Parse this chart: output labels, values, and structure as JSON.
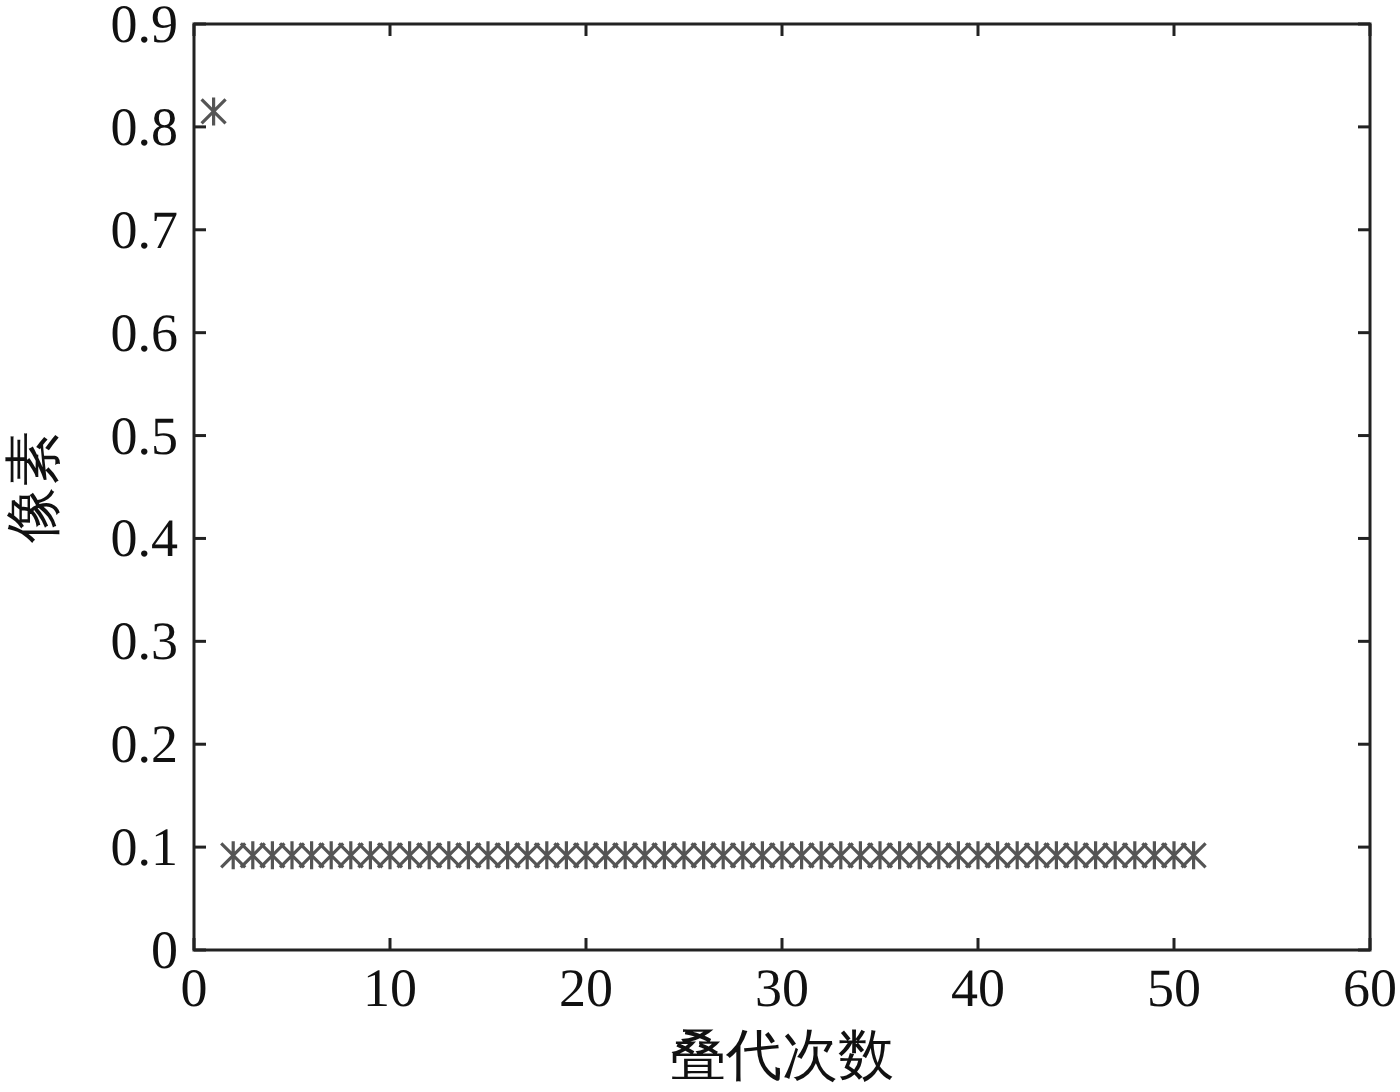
{
  "chart_data": {
    "type": "scatter",
    "xlabel": "叠代次数",
    "ylabel": "像素",
    "marker": "cross",
    "color": "#555555",
    "x": [
      1,
      2,
      3,
      4,
      5,
      6,
      7,
      8,
      9,
      10,
      11,
      12,
      13,
      14,
      15,
      16,
      17,
      18,
      19,
      20,
      21,
      22,
      23,
      24,
      25,
      26,
      27,
      28,
      29,
      30,
      31,
      32,
      33,
      34,
      35,
      36,
      37,
      38,
      39,
      40,
      41,
      42,
      43,
      44,
      45,
      46,
      47,
      48,
      49,
      50,
      51
    ],
    "values": [
      0.815,
      0.092,
      0.092,
      0.092,
      0.092,
      0.092,
      0.092,
      0.092,
      0.092,
      0.092,
      0.092,
      0.092,
      0.092,
      0.092,
      0.092,
      0.092,
      0.092,
      0.092,
      0.092,
      0.092,
      0.092,
      0.092,
      0.092,
      0.092,
      0.092,
      0.092,
      0.092,
      0.092,
      0.092,
      0.092,
      0.092,
      0.092,
      0.092,
      0.092,
      0.092,
      0.092,
      0.092,
      0.092,
      0.092,
      0.092,
      0.092,
      0.092,
      0.092,
      0.092,
      0.092,
      0.092,
      0.092,
      0.092,
      0.092,
      0.092,
      0.092
    ],
    "xlim": [
      0,
      60
    ],
    "ylim": [
      0,
      0.9
    ],
    "xticks": [
      0,
      10,
      20,
      30,
      40,
      50,
      60
    ],
    "yticks": [
      0,
      0.1,
      0.2,
      0.3,
      0.4,
      0.5,
      0.6,
      0.7,
      0.8,
      0.9
    ],
    "grid": false
  }
}
